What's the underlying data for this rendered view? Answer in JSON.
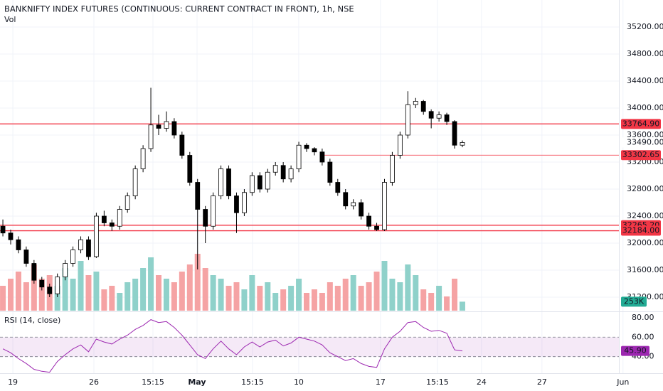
{
  "chart_data": {
    "type": "candlestick",
    "title": "BANKNIFTY INDEX FUTURES (CONTINUOUS: CURRENT CONTRACT IN FRONT), 1h, NSE",
    "volume_title": "Vol",
    "rsi_title": "RSI (14, close)",
    "up_color": "#ffffff",
    "down_color": "#000000",
    "x": [
      0,
      1,
      2,
      3,
      4,
      5,
      6,
      7,
      8,
      9,
      10,
      11,
      12,
      13,
      14,
      15,
      16,
      17,
      18,
      19,
      20,
      21,
      22,
      23,
      24,
      25,
      26,
      27,
      28,
      29,
      30,
      31,
      32,
      33,
      34,
      35,
      36,
      37,
      38,
      39,
      40,
      41,
      42,
      43,
      44,
      45,
      46,
      47,
      48,
      49,
      50,
      51,
      52,
      53,
      54,
      55,
      56,
      57,
      58,
      59
    ],
    "open": [
      32250,
      32150,
      32050,
      31900,
      31700,
      31450,
      31350,
      31250,
      31500,
      31700,
      31900,
      32050,
      31800,
      32400,
      32300,
      32250,
      32500,
      32700,
      33100,
      33400,
      33750,
      33700,
      33800,
      33600,
      33300,
      32900,
      32500,
      32250,
      32700,
      33100,
      32700,
      32450,
      32750,
      33000,
      32800,
      33050,
      33150,
      32950,
      33100,
      33450,
      33400,
      33350,
      33200,
      32900,
      32750,
      32550,
      32600,
      32400,
      32250,
      32200,
      32900,
      33300,
      33600,
      34050,
      34100,
      33950,
      33850,
      33900,
      33800,
      33450
    ],
    "high": [
      32350,
      32200,
      32100,
      31950,
      31750,
      31500,
      31400,
      31550,
      31750,
      31950,
      32100,
      32100,
      32450,
      32480,
      32350,
      32550,
      32750,
      33150,
      33450,
      34300,
      33900,
      33950,
      33850,
      33650,
      33350,
      32950,
      32550,
      32750,
      33150,
      33150,
      32750,
      32800,
      33050,
      33050,
      33100,
      33200,
      33200,
      33150,
      33500,
      33480,
      33420,
      33400,
      33250,
      32950,
      32800,
      32650,
      32650,
      32450,
      32300,
      32950,
      33350,
      33650,
      34250,
      34150,
      34120,
      33980,
      33950,
      33930,
      33820,
      33520
    ],
    "low": [
      32100,
      31980,
      31850,
      31650,
      31400,
      31300,
      31200,
      31200,
      31450,
      31650,
      31850,
      31750,
      31780,
      32250,
      32180,
      32200,
      32450,
      32650,
      33050,
      33350,
      33600,
      33650,
      33550,
      33250,
      32850,
      31610,
      32000,
      32200,
      32650,
      32650,
      32150,
      32400,
      32700,
      32750,
      32750,
      33000,
      32900,
      32900,
      33050,
      33350,
      33300,
      33150,
      32850,
      32700,
      32500,
      32500,
      32350,
      32200,
      32180,
      32180,
      32850,
      33250,
      33550,
      34000,
      33900,
      33700,
      33800,
      33750,
      33400,
      33420
    ],
    "close": [
      32150,
      32050,
      31900,
      31700,
      31450,
      31350,
      31250,
      31500,
      31700,
      31900,
      32050,
      31800,
      32400,
      32300,
      32250,
      32500,
      32700,
      33100,
      33400,
      33750,
      33700,
      33800,
      33600,
      33300,
      32900,
      32500,
      32250,
      32700,
      33100,
      32700,
      32450,
      32750,
      33000,
      32800,
      33050,
      33150,
      32950,
      33100,
      33450,
      33400,
      33350,
      33200,
      32900,
      32750,
      32550,
      32600,
      32400,
      32250,
      32200,
      32900,
      33300,
      33600,
      34050,
      34100,
      33950,
      33850,
      33900,
      33800,
      33450,
      33490
    ],
    "xlim": [
      -0.37,
      79.1
    ],
    "xticks": [
      {
        "value": 1.28,
        "label": "19"
      },
      {
        "value": 11.69,
        "label": "26"
      },
      {
        "value": 19.27,
        "label": "15:15"
      },
      {
        "value": 24.93,
        "label": "May"
      },
      {
        "value": 32.05,
        "label": "15:15"
      },
      {
        "value": 37.99,
        "label": "10"
      },
      {
        "value": 48.49,
        "label": "17"
      },
      {
        "value": 55.8,
        "label": "15:15"
      },
      {
        "value": 61.46,
        "label": "24"
      },
      {
        "value": 69.22,
        "label": "27"
      },
      {
        "value": 79.63,
        "label": "Jun"
      }
    ],
    "ylim": [
      31000,
      35600
    ],
    "yticks": [
      {
        "value": 35200,
        "label": "35200.00"
      },
      {
        "value": 34800,
        "label": "34800.00"
      },
      {
        "value": 34400,
        "label": "34400.00"
      },
      {
        "value": 34000,
        "label": "34000.00"
      },
      {
        "value": 33600,
        "label": "33600.00"
      },
      {
        "value": 33200,
        "label": "33200.00"
      },
      {
        "value": 32800,
        "label": "32800.00"
      },
      {
        "value": 32400,
        "label": "32400.00"
      },
      {
        "value": 32000,
        "label": "32000.00"
      },
      {
        "value": 31600,
        "label": "31600.00"
      },
      {
        "value": 31200,
        "label": "31200.00"
      }
    ],
    "grid": true,
    "levels": [
      {
        "value": 33764.9,
        "label": "33764.90",
        "color": "#f23645"
      },
      {
        "value": 33302.65,
        "label": "33302.65",
        "color": "#f23645",
        "start": 41
      },
      {
        "value": 32265.2,
        "label": "32265.20",
        "color": "#f23645"
      },
      {
        "value": 32184.0,
        "label": "32184.00",
        "color": "#f23645"
      }
    ],
    "last_price": {
      "value": 33490,
      "label": "33490.00"
    },
    "volume": {
      "values": [
        700,
        900,
        1100,
        800,
        1300,
        900,
        1000,
        700,
        1200,
        900,
        1400,
        1000,
        1100,
        600,
        700,
        500,
        800,
        900,
        1200,
        1500,
        1000,
        900,
        800,
        1100,
        1300,
        1600,
        1200,
        1000,
        900,
        700,
        800,
        600,
        1000,
        700,
        800,
        500,
        600,
        700,
        900,
        500,
        600,
        500,
        800,
        700,
        900,
        1000,
        700,
        800,
        1100,
        1400,
        900,
        800,
        1300,
        1000,
        600,
        500,
        700,
        400,
        900,
        253
      ],
      "ylim": [
        0,
        2000
      ],
      "up_color": "#8fd1ca",
      "down_color": "#f5a3a4",
      "last_label": "253K",
      "label_color": "#22ab94"
    },
    "rsi": {
      "values": [
        48,
        44,
        38,
        33,
        27,
        25,
        24,
        35,
        42,
        48,
        52,
        45,
        58,
        55,
        53,
        58,
        62,
        68,
        72,
        78,
        75,
        76,
        70,
        62,
        52,
        42,
        38,
        48,
        56,
        48,
        42,
        50,
        55,
        50,
        55,
        57,
        51,
        54,
        60,
        58,
        56,
        52,
        44,
        40,
        36,
        38,
        33,
        30,
        29,
        48,
        60,
        66,
        75,
        76,
        70,
        66,
        67,
        64,
        47,
        45.9
      ],
      "ylim": [
        23,
        85
      ],
      "yticks": [
        {
          "value": 80,
          "label": "80.00"
        },
        {
          "value": 60,
          "label": "60.00"
        },
        {
          "value": 40,
          "label": "40.00"
        }
      ],
      "band": [
        40,
        60
      ],
      "color": "#9c27b0",
      "last_label": "45.90"
    }
  }
}
